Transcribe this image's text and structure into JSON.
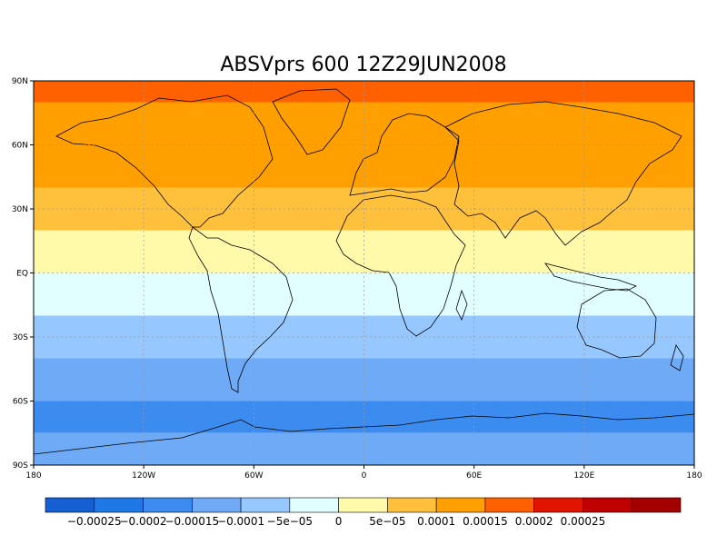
{
  "title": "ABSVprs 600 12Z29JUN2008",
  "chart_data": {
    "type": "heatmap",
    "title": "ABSVprs 600 12Z29JUN2008",
    "variable": "ABSVprs",
    "level": "600",
    "time": "12Z29JUN2008",
    "projection": "latlon",
    "xlim": [
      -180,
      180
    ],
    "ylim": [
      -90,
      90
    ],
    "x_ticks": [
      {
        "value": -180,
        "label": "180"
      },
      {
        "value": -120,
        "label": "120W"
      },
      {
        "value": -60,
        "label": "60W"
      },
      {
        "value": 0,
        "label": "0"
      },
      {
        "value": 60,
        "label": "60E"
      },
      {
        "value": 120,
        "label": "120E"
      },
      {
        "value": 180,
        "label": "180"
      }
    ],
    "y_ticks": [
      {
        "value": 90,
        "label": "90N"
      },
      {
        "value": 60,
        "label": "60N"
      },
      {
        "value": 30,
        "label": "30N"
      },
      {
        "value": 0,
        "label": "EQ"
      },
      {
        "value": -30,
        "label": "30S"
      },
      {
        "value": -60,
        "label": "60S"
      },
      {
        "value": -90,
        "label": "90S"
      }
    ],
    "grid": true,
    "colorbar": {
      "colors": [
        "#1460d2",
        "#1e78e6",
        "#3c8cf0",
        "#6eaaf5",
        "#96c8ff",
        "#e1ffff",
        "#fffaaa",
        "#ffc03c",
        "#ffa000",
        "#ff6000",
        "#e11400",
        "#c00000",
        "#a50000"
      ],
      "labels": [
        "−0.00025",
        "−0.0002",
        "−0.00015",
        "−0.0001",
        "−5e−05",
        "0",
        "5e−05",
        "0.0001",
        "0.00015",
        "0.0002",
        "0.00025"
      ]
    },
    "lat_bands": [
      {
        "lat": [
          80,
          90
        ],
        "level": 9
      },
      {
        "lat": [
          60,
          80
        ],
        "level": 8
      },
      {
        "lat": [
          40,
          60
        ],
        "level": 8
      },
      {
        "lat": [
          20,
          40
        ],
        "level": 7
      },
      {
        "lat": [
          0,
          20
        ],
        "level": 6
      },
      {
        "lat": [
          -20,
          0
        ],
        "level": 5
      },
      {
        "lat": [
          -40,
          -20
        ],
        "level": 4
      },
      {
        "lat": [
          -60,
          -40
        ],
        "level": 3
      },
      {
        "lat": [
          -75,
          -60
        ],
        "level": 2
      },
      {
        "lat": [
          -90,
          -75
        ],
        "level": 3
      }
    ]
  }
}
